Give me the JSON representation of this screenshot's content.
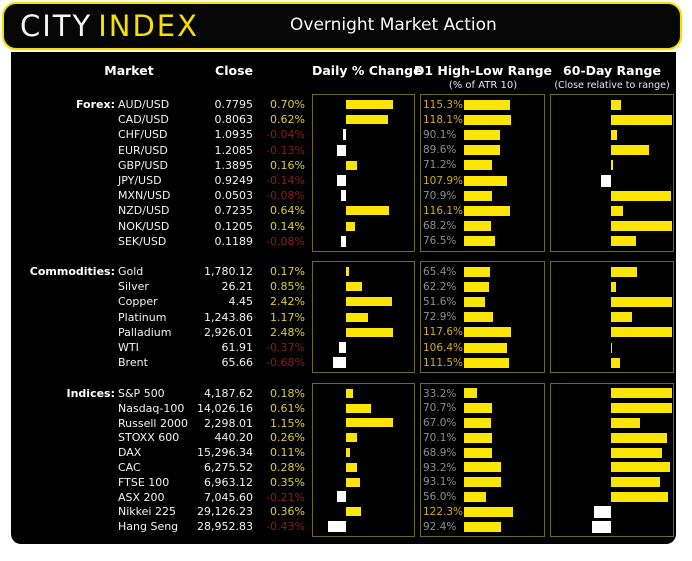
{
  "header": {
    "logo_city": "CITY",
    "logo_index": "INDEX",
    "title": "Overnight Market Action"
  },
  "columns": {
    "market": "Market",
    "close": "Close",
    "daily": "Daily % Change",
    "d1": "D1 High-Low Range",
    "d1_sub": "(% of ATR 10)",
    "range60": "60-Day Range",
    "range60_sub": "(Close relative to range)"
  },
  "colors": {
    "brand_yellow": "#f5e003",
    "bar_yellow": "#fbe503",
    "bar_white": "#ffffff",
    "positive_text": "#ddd024",
    "negative_text": "#8e1b1b",
    "d1_normal_text": "#8f8f8f",
    "d1_over100_text": "#d3ab1c",
    "box_border": "#6b6b1f",
    "panel_bg": "#000000"
  },
  "chart_data": {
    "type": "table",
    "title": "Overnight Market Action",
    "columns": [
      "Market",
      "Close",
      "Daily % Change",
      "D1 High-Low Range (% of ATR 10)",
      "60-Day Range (Close relative to range)"
    ],
    "sections": [
      {
        "label": "Forex:",
        "rows": [
          {
            "market": "AUD/USD",
            "close": "0.7795",
            "daily": "0.70%",
            "daily_val": 0.7,
            "d1": "115.3%",
            "d1_val": 115.3,
            "r60_val": 0.17
          },
          {
            "market": "CAD/USD",
            "close": "0.8063",
            "daily": "0.62%",
            "daily_val": 0.62,
            "d1": "118.1%",
            "d1_val": 118.1,
            "r60_val": 1.0
          },
          {
            "market": "CHF/USD",
            "close": "1.0935",
            "daily": "-0.04%",
            "daily_val": -0.04,
            "d1": "90.1%",
            "d1_val": 90.1,
            "r60_val": 0.1
          },
          {
            "market": "EUR/USD",
            "close": "1.2085",
            "daily": "-0.13%",
            "daily_val": -0.13,
            "d1": "89.6%",
            "d1_val": 89.6,
            "r60_val": 0.62
          },
          {
            "market": "GBP/USD",
            "close": "1.3895",
            "daily": "0.16%",
            "daily_val": 0.16,
            "d1": "71.2%",
            "d1_val": 71.2,
            "r60_val": 0.04
          },
          {
            "market": "JPY/USD",
            "close": "0.9249",
            "daily": "-0.14%",
            "daily_val": -0.14,
            "d1": "107.9%",
            "d1_val": 107.9,
            "r60_val": -0.16
          },
          {
            "market": "MXN/USD",
            "close": "0.0503",
            "daily": "-0.08%",
            "daily_val": -0.08,
            "d1": "70.9%",
            "d1_val": 70.9,
            "r60_val": 0.98
          },
          {
            "market": "NZD/USD",
            "close": "0.7235",
            "daily": "0.64%",
            "daily_val": 0.64,
            "d1": "116.1%",
            "d1_val": 116.1,
            "r60_val": 0.2
          },
          {
            "market": "NOK/USD",
            "close": "0.1205",
            "daily": "0.14%",
            "daily_val": 0.14,
            "d1": "68.2%",
            "d1_val": 68.2,
            "r60_val": 1.0
          },
          {
            "market": "SEK/USD",
            "close": "0.1189",
            "daily": "-0.08%",
            "daily_val": -0.08,
            "d1": "76.5%",
            "d1_val": 76.5,
            "r60_val": 0.41
          }
        ]
      },
      {
        "label": "Commodities:",
        "rows": [
          {
            "market": "Gold",
            "close": "1,780.12",
            "daily": "0.17%",
            "daily_val": 0.17,
            "d1": "65.4%",
            "d1_val": 65.4,
            "r60_val": 0.43
          },
          {
            "market": "Silver",
            "close": "26.21",
            "daily": "0.85%",
            "daily_val": 0.85,
            "d1": "62.2%",
            "d1_val": 62.2,
            "r60_val": 0.08
          },
          {
            "market": "Copper",
            "close": "4.45",
            "daily": "2.42%",
            "daily_val": 2.42,
            "d1": "51.6%",
            "d1_val": 51.6,
            "r60_val": 1.0
          },
          {
            "market": "Platinum",
            "close": "1,243.86",
            "daily": "1.17%",
            "daily_val": 1.17,
            "d1": "72.9%",
            "d1_val": 72.9,
            "r60_val": 0.35
          },
          {
            "market": "Palladium",
            "close": "2,926.01",
            "daily": "2.48%",
            "daily_val": 2.48,
            "d1": "117.6%",
            "d1_val": 117.6,
            "r60_val": 1.0
          },
          {
            "market": "WTI",
            "close": "61.91",
            "daily": "-0.37%",
            "daily_val": -0.37,
            "d1": "106.4%",
            "d1_val": 106.4,
            "r60_val": 0.01
          },
          {
            "market": "Brent",
            "close": "65.66",
            "daily": "-0.68%",
            "daily_val": -0.68,
            "d1": "111.5%",
            "d1_val": 111.5,
            "r60_val": 0.14
          }
        ]
      },
      {
        "label": "Indices:",
        "rows": [
          {
            "market": "S&P 500",
            "close": "4,187.62",
            "daily": "0.18%",
            "daily_val": 0.18,
            "d1": "33.2%",
            "d1_val": 33.2,
            "r60_val": 1.0
          },
          {
            "market": "Nasdaq-100",
            "close": "14,026.16",
            "daily": "0.61%",
            "daily_val": 0.61,
            "d1": "70.7%",
            "d1_val": 70.7,
            "r60_val": 1.0
          },
          {
            "market": "Russell 2000",
            "close": "2,298.01",
            "daily": "1.15%",
            "daily_val": 1.15,
            "d1": "67.0%",
            "d1_val": 67.0,
            "r60_val": 0.47
          },
          {
            "market": "STOXX 600",
            "close": "440.20",
            "daily": "0.26%",
            "daily_val": 0.26,
            "d1": "70.1%",
            "d1_val": 70.1,
            "r60_val": 0.91
          },
          {
            "market": "DAX",
            "close": "15,296.34",
            "daily": "0.11%",
            "daily_val": 0.11,
            "d1": "68.9%",
            "d1_val": 68.9,
            "r60_val": 0.83
          },
          {
            "market": "CAC",
            "close": "6,275.52",
            "daily": "0.28%",
            "daily_val": 0.28,
            "d1": "93.2%",
            "d1_val": 93.2,
            "r60_val": 0.97
          },
          {
            "market": "FTSE 100",
            "close": "6,963.12",
            "daily": "0.35%",
            "daily_val": 0.35,
            "d1": "93.1%",
            "d1_val": 93.1,
            "r60_val": 0.81
          },
          {
            "market": "ASX 200",
            "close": "7,045.60",
            "daily": "-0.21%",
            "daily_val": -0.21,
            "d1": "56.0%",
            "d1_val": 56.0,
            "r60_val": 0.94
          },
          {
            "market": "Nikkei 225",
            "close": "29,126.23",
            "daily": "0.36%",
            "daily_val": 0.36,
            "d1": "122.3%",
            "d1_val": 122.3,
            "r60_val": -0.28
          },
          {
            "market": "Hang Seng",
            "close": "28,952.83",
            "daily": "-0.43%",
            "daily_val": -0.43,
            "d1": "92.4%",
            "d1_val": 92.4,
            "r60_val": -0.31
          }
        ]
      }
    ]
  }
}
